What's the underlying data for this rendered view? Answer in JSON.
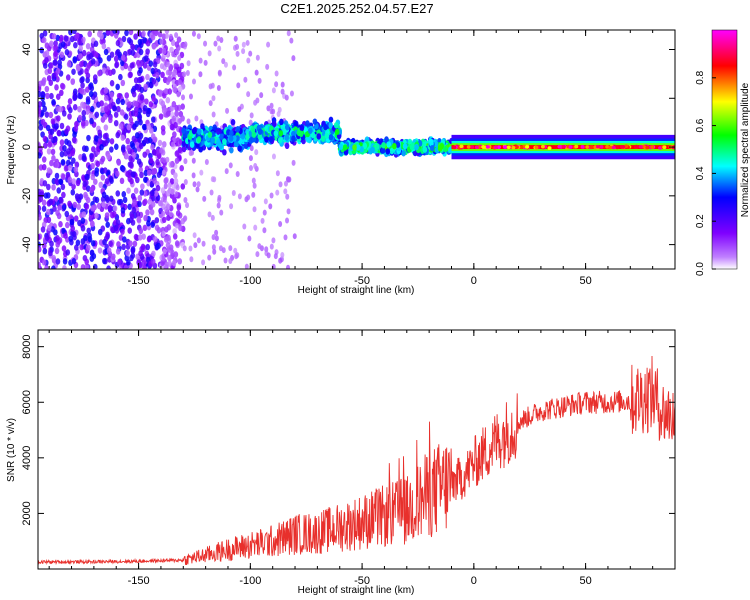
{
  "chart_data": [
    {
      "type": "heatmap",
      "title": "C2E1.2025.252.04.57.E27",
      "xlabel": "Height of straight line (km)",
      "ylabel": "Frequency (Hz)",
      "xlim": [
        -195,
        90
      ],
      "ylim": [
        -50,
        48
      ],
      "xticks": [
        -150,
        -100,
        -50,
        0,
        50
      ],
      "xtick_labels": [
        "-150",
        "-100",
        "-50",
        "0",
        "50"
      ],
      "yticks": [
        -40,
        -20,
        0,
        20,
        40
      ],
      "ytick_labels": [
        "-40",
        "-20",
        "0",
        "20",
        "40"
      ],
      "colorbar": {
        "label": "Normalized spectral amplitude",
        "ticks": [
          0.0,
          0.2,
          0.4,
          0.6,
          0.8
        ],
        "tick_labels": [
          "0.0",
          "0.2",
          "0.4",
          "0.6",
          "0.8"
        ],
        "range": [
          0,
          1
        ],
        "colors": [
          "#ffffff",
          "#7f00ff",
          "#0000ff",
          "#00ffff",
          "#00ff00",
          "#ffff00",
          "#ff0000",
          "#ff00ff"
        ]
      },
      "bands": [
        {
          "x_from": -195,
          "x_to": -130,
          "freq_center": 0,
          "freq_spread": 48,
          "level": 0.18
        },
        {
          "x_from": -130,
          "x_to": -100,
          "freq_center": 4,
          "freq_spread": 7,
          "level": 0.35
        },
        {
          "x_from": -100,
          "x_to": -60,
          "freq_center": 6,
          "freq_spread": 6,
          "level": 0.38
        },
        {
          "x_from": -60,
          "x_to": -10,
          "freq_center": 0,
          "freq_spread": 4,
          "level": 0.42
        },
        {
          "x_from": -10,
          "x_to": 90,
          "freq_center": 0,
          "freq_spread": 1.5,
          "level": 0.95
        }
      ]
    },
    {
      "type": "line",
      "title": "",
      "xlabel": "Height of straight line (km)",
      "ylabel": "SNR (10 * v/v)",
      "xlim": [
        -195,
        90
      ],
      "ylim": [
        0,
        8600
      ],
      "xticks": [
        -150,
        -100,
        -50,
        0,
        50
      ],
      "xtick_labels": [
        "-150",
        "-100",
        "-50",
        "0",
        "50"
      ],
      "yticks": [
        2000,
        4000,
        6000,
        8000
      ],
      "ytick_labels": [
        "2000",
        "4000",
        "6000",
        "8000"
      ],
      "color": "#e8302c",
      "series": [
        {
          "name": "SNR",
          "x": [
            -195,
            -170,
            -150,
            -130,
            -120,
            -110,
            -100,
            -90,
            -80,
            -70,
            -60,
            -50,
            -40,
            -30,
            -25,
            -20,
            -15,
            -10,
            -5,
            0,
            5,
            10,
            20,
            30,
            40,
            50,
            60,
            70,
            80,
            85,
            90
          ],
          "y": [
            250,
            260,
            280,
            320,
            500,
            700,
            850,
            1000,
            1250,
            1300,
            1500,
            1700,
            1900,
            2100,
            2400,
            2700,
            2900,
            3100,
            3300,
            3800,
            4200,
            4600,
            5300,
            5700,
            5850,
            6000,
            6000,
            6050,
            6300,
            5600,
            5500
          ]
        }
      ]
    }
  ]
}
